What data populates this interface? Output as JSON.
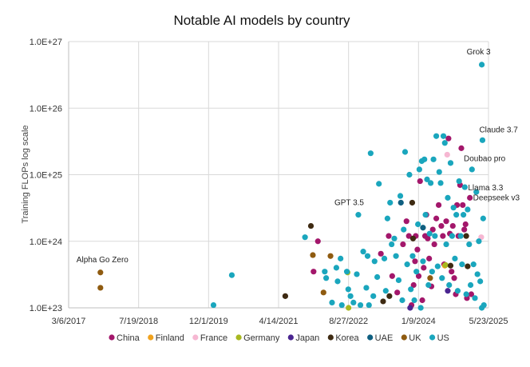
{
  "chart_data": {
    "type": "scatter",
    "title": "Notable AI models by country",
    "xlabel": "",
    "ylabel": "Training FLOPs log scale",
    "x_scale": "date",
    "y_scale": "log",
    "xlim": [
      "2017-03-06",
      "2025-05-23"
    ],
    "x_ticks": [
      "3/6/2017",
      "7/19/2018",
      "12/1/2019",
      "4/14/2021",
      "8/27/2022",
      "1/9/2024",
      "5/23/2025"
    ],
    "ylim": [
      1e+23,
      1e+27
    ],
    "y_ticks": [
      "1.0E+23",
      "1.0E+24",
      "1.0E+25",
      "1.0E+26",
      "1.0E+27"
    ],
    "grid": true,
    "legend_position": "bottom",
    "series": [
      {
        "name": "China",
        "color": "#a3176b",
        "points": [
          [
            "2021-12-20",
            3.5e+23
          ],
          [
            "2022-01-20",
            1e+24
          ],
          [
            "2023-04-15",
            6.5e+23
          ],
          [
            "2023-06-10",
            1.2e+24
          ],
          [
            "2023-07-05",
            3e+23
          ],
          [
            "2023-08-10",
            1.7e+23
          ],
          [
            "2023-09-20",
            9e+23
          ],
          [
            "2023-10-15",
            2e+24
          ],
          [
            "2023-11-01",
            1.2e+24
          ],
          [
            "2023-11-20",
            1.1e+23
          ],
          [
            "2023-12-05",
            2.2e+23
          ],
          [
            "2023-12-15",
            5e+23
          ],
          [
            "2023-12-20",
            1.2e+24
          ],
          [
            "2024-01-01",
            7.5e+23
          ],
          [
            "2024-01-10",
            3e+23
          ],
          [
            "2024-01-20",
            8e+24
          ],
          [
            "2024-02-05",
            1.3e+23
          ],
          [
            "2024-02-15",
            4e+23
          ],
          [
            "2024-02-25",
            1.2e+24
          ],
          [
            "2024-03-05",
            2.5e+24
          ],
          [
            "2024-03-15",
            1.1e+24
          ],
          [
            "2024-03-25",
            5.5e+23
          ],
          [
            "2024-04-10",
            2.1e+23
          ],
          [
            "2024-04-20",
            1.5e+24
          ],
          [
            "2024-05-01",
            9e+23
          ],
          [
            "2024-05-15",
            2.2e+24
          ],
          [
            "2024-06-01",
            3.5e+24
          ],
          [
            "2024-06-20",
            1.7e+24
          ],
          [
            "2024-07-01",
            1.2e+24
          ],
          [
            "2024-07-10",
            4.5e+23
          ],
          [
            "2024-07-25",
            2e+24
          ],
          [
            "2024-08-10",
            3.5e+25
          ],
          [
            "2024-08-20",
            1.3e+24
          ],
          [
            "2024-09-01",
            3.5e+23
          ],
          [
            "2024-09-10",
            1.7e+24
          ],
          [
            "2024-09-20",
            2.8e+23
          ],
          [
            "2024-10-01",
            1.6e+23
          ],
          [
            "2024-10-10",
            3.5e+24
          ],
          [
            "2024-10-20",
            1.2e+24
          ],
          [
            "2024-11-01",
            7e+24
          ],
          [
            "2024-11-10",
            2.5e+25
          ],
          [
            "2024-11-20",
            3.5e+24
          ],
          [
            "2024-12-01",
            1.5e+24
          ],
          [
            "2024-12-10",
            1.8e+24
          ],
          [
            "2024-12-20",
            1.4e+23
          ],
          [
            "2025-01-10",
            4.5e+24
          ],
          [
            "2025-01-20",
            1.6e+23
          ]
        ]
      },
      {
        "name": "Finland",
        "color": "#f0a21e",
        "points": [
          [
            "2024-07-15",
            4.3e+23
          ]
        ]
      },
      {
        "name": "France",
        "color": "#f6b7d2",
        "points": [
          [
            "2024-08-01",
            2e+25
          ],
          [
            "2025-04-01",
            1.15e+24
          ]
        ]
      },
      {
        "name": "Germany",
        "color": "#a8b820",
        "points": [
          [
            "2022-08-20",
            3.4e+23
          ],
          [
            "2022-08-27",
            1e+23
          ],
          [
            "2024-07-20",
            4.4e+23
          ]
        ]
      },
      {
        "name": "Japan",
        "color": "#4a2590",
        "points": [
          [
            "2023-11-10",
            1e+23
          ],
          [
            "2024-08-05",
            1.8e+23
          ]
        ]
      },
      {
        "name": "Korea",
        "color": "#3e2a12",
        "points": [
          [
            "2021-06-01",
            1.5e+23
          ],
          [
            "2021-12-01",
            1.7e+24
          ],
          [
            "2023-05-01",
            1.25e+23
          ],
          [
            "2023-06-15",
            1.5e+23
          ],
          [
            "2023-11-25",
            3.8e+24
          ],
          [
            "2023-12-01",
            1.1e+24
          ],
          [
            "2024-08-25",
            4.3e+23
          ],
          [
            "2024-12-15",
            1.2e+24
          ],
          [
            "2024-12-25",
            4.2e+23
          ]
        ]
      },
      {
        "name": "UAE",
        "color": "#0f5f80",
        "points": [
          [
            "2023-09-05",
            3.8e+24
          ],
          [
            "2024-02-10",
            1.6e+24
          ]
        ]
      },
      {
        "name": "UK",
        "color": "#8f5b10",
        "points": [
          [
            "2017-10-19",
            3.4e+23
          ],
          [
            "2017-10-19",
            2e+23
          ],
          [
            "2021-12-15",
            6.2e+23
          ],
          [
            "2022-03-01",
            1.7e+23
          ],
          [
            "2022-04-20",
            6e+23
          ],
          [
            "2024-04-01",
            2.8e+23
          ]
        ]
      },
      {
        "name": "US",
        "color": "#1aa6bd",
        "points": [
          [
            "2020-01-05",
            1.1e+23
          ],
          [
            "2020-05-15",
            3.1e+23
          ],
          [
            "2021-10-20",
            1.15e+24
          ],
          [
            "2022-03-10",
            3.5e+23
          ],
          [
            "2022-03-20",
            2.8e+23
          ],
          [
            "2022-05-01",
            1.2e+23
          ],
          [
            "2022-06-01",
            4e+23
          ],
          [
            "2022-06-10",
            2.5e+23
          ],
          [
            "2022-07-01",
            5.5e+23
          ],
          [
            "2022-07-10",
            1.1e+23
          ],
          [
            "2022-08-15",
            3.5e+23
          ],
          [
            "2022-08-25",
            1.9e+23
          ],
          [
            "2022-09-10",
            1.5e+23
          ],
          [
            "2022-10-01",
            1.2e+23
          ],
          [
            "2022-10-25",
            3.2e+23
          ],
          [
            "2022-11-05",
            2.5e+24
          ],
          [
            "2022-11-20",
            1.1e+23
          ],
          [
            "2022-12-10",
            7e+23
          ],
          [
            "2023-01-01",
            2e+23
          ],
          [
            "2023-01-10",
            6e+23
          ],
          [
            "2023-01-20",
            1.1e+23
          ],
          [
            "2023-02-01",
            2.1e+25
          ],
          [
            "2023-02-20",
            1.5e+23
          ],
          [
            "2023-03-01",
            5e+23
          ],
          [
            "2023-03-20",
            2.9e+23
          ],
          [
            "2023-04-01",
            7.3e+24
          ],
          [
            "2023-05-10",
            5.5e+23
          ],
          [
            "2023-05-20",
            1.8e+23
          ],
          [
            "2023-06-01",
            2.2e+24
          ],
          [
            "2023-06-20",
            3.8e+24
          ],
          [
            "2023-07-01",
            9e+23
          ],
          [
            "2023-07-20",
            1.1e+24
          ],
          [
            "2023-08-01",
            6e+23
          ],
          [
            "2023-08-20",
            2.6e+23
          ],
          [
            "2023-09-01",
            4.8e+24
          ],
          [
            "2023-09-15",
            1.3e+23
          ],
          [
            "2023-09-25",
            1.5e+24
          ],
          [
            "2023-10-05",
            2.2e+25
          ],
          [
            "2023-10-20",
            4.5e+23
          ],
          [
            "2023-11-05",
            1e+25
          ],
          [
            "2023-11-15",
            1.9e+23
          ],
          [
            "2023-11-28",
            6e+23
          ],
          [
            "2023-12-10",
            1.3e+23
          ],
          [
            "2023-12-25",
            3.5e+23
          ],
          [
            "2024-01-05",
            1.8e+24
          ],
          [
            "2024-01-15",
            1.2e+25
          ],
          [
            "2024-01-25",
            1e+23
          ],
          [
            "2024-02-01",
            1.6e+25
          ],
          [
            "2024-02-10",
            5e+23
          ],
          [
            "2024-02-20",
            1.7e+25
          ],
          [
            "2024-02-28",
            2.5e+24
          ],
          [
            "2024-03-10",
            8.5e+24
          ],
          [
            "2024-03-20",
            2.2e+23
          ],
          [
            "2024-03-28",
            1.3e+24
          ],
          [
            "2024-04-05",
            7.5e+24
          ],
          [
            "2024-04-15",
            3.5e+23
          ],
          [
            "2024-04-25",
            1.7e+25
          ],
          [
            "2024-05-05",
            1.2e+24
          ],
          [
            "2024-05-15",
            3.8e+25
          ],
          [
            "2024-05-25",
            4.2e+23
          ],
          [
            "2024-06-05",
            1.1e+25
          ],
          [
            "2024-06-15",
            7.5e+24
          ],
          [
            "2024-06-25",
            2.8e+23
          ],
          [
            "2024-07-05",
            3.8e+25
          ],
          [
            "2024-07-15",
            3e+25
          ],
          [
            "2024-07-25",
            9e+23
          ],
          [
            "2024-08-05",
            4.5e+24
          ],
          [
            "2024-08-15",
            2.2e+23
          ],
          [
            "2024-08-25",
            1.5e+25
          ],
          [
            "2024-09-05",
            1.2e+24
          ],
          [
            "2024-09-15",
            3.2e+24
          ],
          [
            "2024-09-25",
            5.5e+23
          ],
          [
            "2024-10-05",
            2.5e+24
          ],
          [
            "2024-10-15",
            1.8e+23
          ],
          [
            "2024-10-25",
            8e+24
          ],
          [
            "2024-11-05",
            1.2e+24
          ],
          [
            "2024-11-15",
            4.5e+23
          ],
          [
            "2024-11-25",
            2.5e+24
          ],
          [
            "2024-12-05",
            6.5e+24
          ],
          [
            "2024-12-15",
            1.6e+23
          ],
          [
            "2024-12-25",
            3e+24
          ],
          [
            "2025-01-05",
            9e+23
          ],
          [
            "2025-01-15",
            2.2e+23
          ],
          [
            "2025-01-25",
            1.2e+25
          ],
          [
            "2025-02-05",
            4.5e+23
          ],
          [
            "2025-02-15",
            1.4e+23
          ],
          [
            "2025-02-25",
            5.5e+24
          ],
          [
            "2025-03-05",
            3.2e+23
          ],
          [
            "2025-03-15",
            1e+24
          ],
          [
            "2025-03-25",
            2.5e+23
          ],
          [
            "2025-04-05",
            4.5e+26
          ],
          [
            "2025-04-10",
            3.3e+25
          ],
          [
            "2025-04-15",
            2.2e+24
          ],
          [
            "2025-04-20",
            1.1e+23
          ],
          [
            "2025-04-05",
            1e+23
          ]
        ]
      }
    ],
    "annotations": [
      {
        "text": "Alpha Go Zero",
        "x": "2017-10-19",
        "y": 3.4e+23
      },
      {
        "text": "GPT 3.5",
        "x": "2022-11-05",
        "y": 2.5e+24
      },
      {
        "text": "Grok 3",
        "x": "2025-04-05",
        "y": 4.5e+26
      },
      {
        "text": "Claude 3.7",
        "x": "2025-04-10",
        "y": 3.3e+25
      },
      {
        "text": "Doubao pro",
        "x": "2024-11-10",
        "y": 2.5e+25
      },
      {
        "text": "Llama 3.3",
        "x": "2024-12-05",
        "y": 6.5e+24
      },
      {
        "text": "Deepseek v3",
        "x": "2025-01-10",
        "y": 4.5e+24
      }
    ]
  }
}
